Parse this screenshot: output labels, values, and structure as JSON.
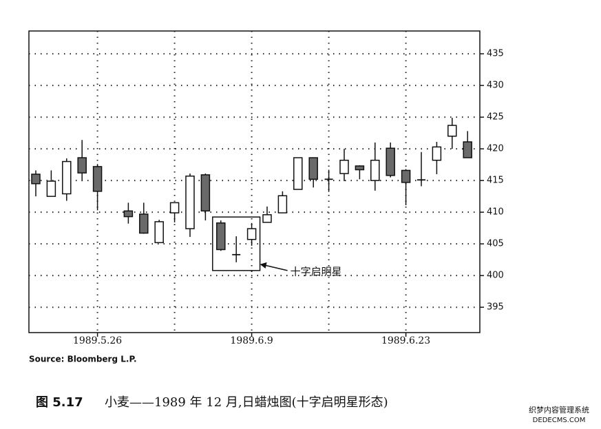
{
  "chart_data": {
    "type": "candlestick",
    "categories": [
      null,
      null,
      null,
      null,
      "1989.5.26",
      null,
      null,
      null,
      null,
      null,
      null,
      null,
      null,
      null,
      "1989.6.9",
      null,
      null,
      null,
      null,
      null,
      null,
      null,
      null,
      null,
      "1989.6.23",
      null,
      null,
      null,
      null
    ],
    "open": [
      416.0,
      412.5,
      412.9,
      418.6,
      417.2,
      null,
      410.2,
      409.7,
      405.2,
      409.9,
      407.4,
      415.9,
      408.3,
      403.3,
      405.7,
      408.4,
      409.9,
      413.6,
      418.6,
      415.2,
      416.1,
      417.3,
      415.0,
      420.1,
      416.6,
      415.1,
      418.2,
      422.0,
      421.1
    ],
    "high": [
      416.6,
      416.6,
      418.5,
      421.4,
      417.6,
      null,
      411.5,
      411.5,
      408.8,
      411.5,
      416.1,
      416.1,
      408.7,
      406.2,
      408.3,
      410.9,
      413.3,
      418.6,
      418.6,
      416.7,
      420.0,
      417.4,
      421.0,
      421.0,
      416.8,
      419.5,
      421.1,
      424.9,
      422.8
    ],
    "low": [
      412.5,
      412.5,
      411.8,
      414.9,
      410.3,
      null,
      408.2,
      406.6,
      405.2,
      408.4,
      406.1,
      408.7,
      403.9,
      402.1,
      404.7,
      408.4,
      409.9,
      413.6,
      413.9,
      413.2,
      414.9,
      415.2,
      413.4,
      415.5,
      411.1,
      414.1,
      416.0,
      420.0,
      418.6
    ],
    "close": [
      414.5,
      414.9,
      418.0,
      416.2,
      413.3,
      null,
      409.3,
      406.7,
      408.5,
      411.5,
      415.7,
      410.2,
      404.1,
      403.3,
      407.4,
      409.6,
      412.6,
      418.6,
      415.2,
      415.2,
      418.2,
      416.7,
      418.2,
      415.8,
      414.7,
      415.1,
      420.3,
      423.7,
      418.6
    ],
    "up_color": "#ffffff",
    "down_color": "#6a6a6a",
    "ylim": [
      391,
      438.6
    ],
    "yticks": [
      395,
      400,
      405,
      410,
      415,
      420,
      425,
      430,
      435
    ],
    "grid": true,
    "annotation": "十字启明星",
    "source": "Source: Bloomberg L.P.",
    "caption_number": "图 5.17",
    "caption": "小麦——1989 年 12 月,日蜡烛图(十字启明星形态)"
  },
  "watermark": {
    "line1": "织梦内容管理系统",
    "line2": "DEDECMS.COM"
  }
}
